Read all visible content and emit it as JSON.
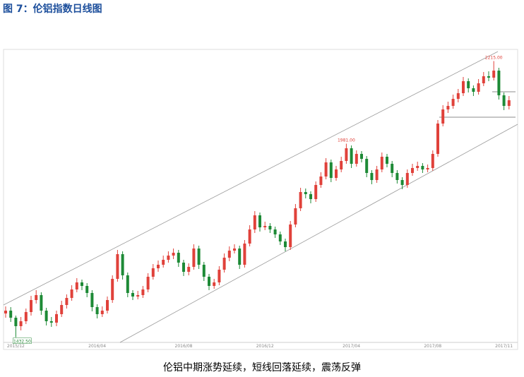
{
  "chart_data": {
    "type": "candlestick",
    "title": "图 7：伦铝指数日线图",
    "caption": "伦铝中期涨势延续，短线回落延续，震荡反弹",
    "categories": [
      null,
      null,
      "2015/12",
      null,
      null,
      null,
      null,
      null,
      null,
      null,
      null,
      null,
      null,
      null,
      null,
      null,
      null,
      null,
      "2016/04",
      null,
      null,
      null,
      null,
      null,
      null,
      null,
      null,
      null,
      null,
      null,
      null,
      null,
      null,
      null,
      null,
      "2016/08",
      null,
      null,
      null,
      null,
      null,
      null,
      null,
      null,
      null,
      null,
      null,
      null,
      null,
      null,
      null,
      "2016/12",
      null,
      null,
      null,
      null,
      null,
      null,
      null,
      null,
      null,
      null,
      null,
      null,
      null,
      null,
      null,
      null,
      "2017/04",
      null,
      null,
      null,
      null,
      null,
      null,
      null,
      null,
      null,
      null,
      null,
      null,
      null,
      null,
      null,
      "2017/08",
      null,
      null,
      null,
      null,
      null,
      null,
      null,
      null,
      null,
      null,
      null,
      null,
      null,
      "2017/11",
      null
    ],
    "open": [
      1500,
      1508,
      1488,
      1464,
      1478,
      1504,
      1538,
      1552,
      1508,
      1478,
      1474,
      1498,
      1524,
      1544,
      1568,
      1588,
      1578,
      1558,
      1518,
      1498,
      1508,
      1538,
      1598,
      1668,
      1608,
      1558,
      1548,
      1552,
      1568,
      1604,
      1628,
      1638,
      1652,
      1664,
      1672,
      1644,
      1618,
      1632,
      1684,
      1638,
      1604,
      1578,
      1588,
      1624,
      1658,
      1678,
      1684,
      1638,
      1698,
      1738,
      1778,
      1744,
      1748,
      1738,
      1724,
      1704,
      1688,
      1752,
      1798,
      1844,
      1838,
      1824,
      1864,
      1888,
      1928,
      1884,
      1908,
      1932,
      1968,
      1924,
      1952,
      1938,
      1898,
      1878,
      1908,
      1944,
      1924,
      1898,
      1878,
      1864,
      1898,
      1912,
      1918,
      1908,
      1912,
      1952,
      2038,
      2078,
      2088,
      2108,
      2124,
      2158,
      2138,
      2128,
      2152,
      2172,
      2168,
      2188,
      2118,
      2088
    ],
    "high": [
      1520,
      1518,
      1494,
      1490,
      1514,
      1550,
      1566,
      1560,
      1516,
      1490,
      1508,
      1536,
      1554,
      1580,
      1600,
      1596,
      1586,
      1566,
      1526,
      1520,
      1548,
      1608,
      1680,
      1676,
      1616,
      1566,
      1564,
      1578,
      1614,
      1640,
      1650,
      1664,
      1676,
      1684,
      1680,
      1652,
      1642,
      1696,
      1692,
      1646,
      1612,
      1598,
      1634,
      1670,
      1690,
      1696,
      1692,
      1708,
      1750,
      1790,
      1786,
      1760,
      1756,
      1746,
      1732,
      1712,
      1762,
      1810,
      1856,
      1854,
      1846,
      1874,
      1900,
      1940,
      1936,
      1918,
      1944,
      1981,
      1976,
      1962,
      1960,
      1946,
      1906,
      1918,
      1956,
      1952,
      1932,
      1906,
      1886,
      1908,
      1924,
      1930,
      1926,
      1922,
      1962,
      2048,
      2090,
      2100,
      2120,
      2136,
      2170,
      2166,
      2146,
      2164,
      2184,
      2186,
      2215,
      2196,
      2126,
      2116
    ],
    "low": [
      1488,
      1476,
      1432.5,
      1452,
      1470,
      1494,
      1528,
      1496,
      1466,
      1462,
      1464,
      1490,
      1514,
      1536,
      1560,
      1566,
      1546,
      1506,
      1486,
      1490,
      1500,
      1530,
      1590,
      1596,
      1546,
      1538,
      1540,
      1544,
      1560,
      1596,
      1618,
      1630,
      1644,
      1654,
      1632,
      1606,
      1608,
      1624,
      1626,
      1592,
      1566,
      1570,
      1580,
      1616,
      1648,
      1670,
      1626,
      1630,
      1690,
      1728,
      1732,
      1736,
      1728,
      1714,
      1694,
      1676,
      1680,
      1744,
      1790,
      1826,
      1812,
      1816,
      1856,
      1880,
      1872,
      1876,
      1900,
      1924,
      1912,
      1916,
      1928,
      1886,
      1866,
      1870,
      1900,
      1914,
      1886,
      1868,
      1852,
      1856,
      1890,
      1904,
      1898,
      1900,
      1904,
      1944,
      2030,
      2068,
      2080,
      2098,
      2116,
      2126,
      2116,
      2120,
      2144,
      2158,
      2160,
      2106,
      2076,
      2078
    ],
    "close": [
      1508,
      1488,
      1464,
      1478,
      1504,
      1538,
      1552,
      1508,
      1478,
      1474,
      1498,
      1524,
      1544,
      1568,
      1588,
      1578,
      1558,
      1518,
      1498,
      1508,
      1538,
      1598,
      1668,
      1608,
      1558,
      1548,
      1552,
      1568,
      1604,
      1628,
      1638,
      1652,
      1664,
      1672,
      1644,
      1618,
      1632,
      1684,
      1638,
      1604,
      1578,
      1588,
      1624,
      1658,
      1678,
      1684,
      1638,
      1698,
      1738,
      1778,
      1744,
      1748,
      1738,
      1724,
      1704,
      1688,
      1752,
      1798,
      1844,
      1838,
      1824,
      1864,
      1888,
      1928,
      1884,
      1908,
      1932,
      1968,
      1924,
      1952,
      1938,
      1898,
      1878,
      1908,
      1944,
      1924,
      1898,
      1878,
      1864,
      1898,
      1912,
      1918,
      1908,
      1912,
      1952,
      2038,
      2078,
      2088,
      2108,
      2124,
      2158,
      2138,
      2128,
      2152,
      2172,
      2168,
      2188,
      2118,
      2088,
      2104
    ],
    "up_color": "#e0413a",
    "down_color": "#1d8a36",
    "ylim": [
      1418,
      2238
    ],
    "annotations": [
      {
        "value": 1432.5,
        "label": "1432.50"
      },
      {
        "value": 1981,
        "label": "1981.00"
      },
      {
        "value": 2215,
        "label": "2215.00"
      }
    ]
  }
}
